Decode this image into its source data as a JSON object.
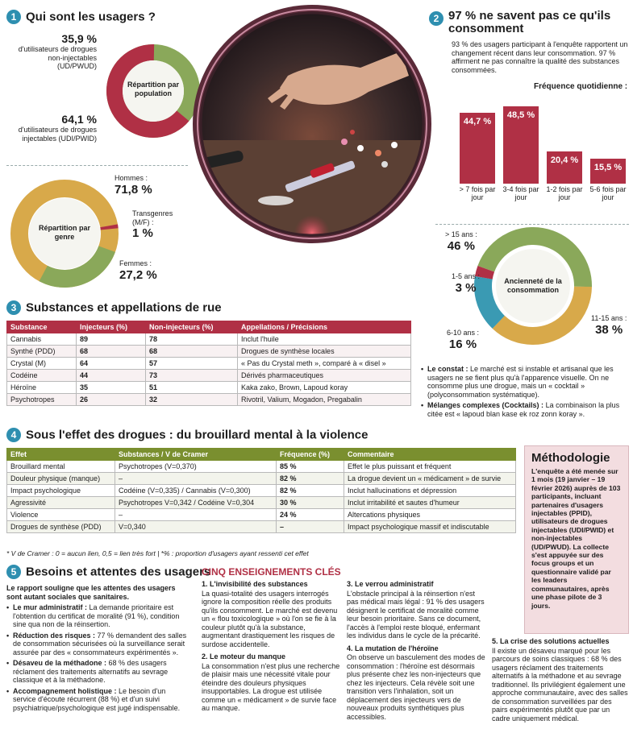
{
  "colors": {
    "red": "#b03045",
    "green": "#8aa85a",
    "olive": "#7a8f2f",
    "gold": "#d8a94a",
    "teal": "#3a9ab3",
    "blue": "#2e8fb0"
  },
  "s1": {
    "num": "1",
    "title": "Qui sont les usagers ?",
    "pop_label": "Répartition par population",
    "pwud_pct": "35,9 %",
    "pwud_text": "d'utilisateurs de drogues non-injectables (UD/PWUD)",
    "pwid_pct": "64,1 %",
    "pwid_text": "d'utilisateurs de drogues injectables (UDI/PWID)",
    "genre_label": "Répartition par genre",
    "hommes_label": "Hommes :",
    "hommes_pct": "71,8 %",
    "trans_label": "Transgenres (M/F) :",
    "trans_pct": "1 %",
    "femmes_label": "Femmes :",
    "femmes_pct": "27,2 %"
  },
  "s2": {
    "num": "2",
    "title": "97 % ne savent pas ce qu'ils consomment",
    "intro": "93 % des usagers participant à l'enquête rapportent un changement récent dans leur consommation. 97 % affirment ne pas connaître la qualité des substances consommées.",
    "freq_title": "Fréquence quotidienne :",
    "anc_label": "Ancienneté de la consommation",
    "anc": [
      {
        "label": "> 15 ans :",
        "pct": "46 %",
        "value": 46
      },
      {
        "label": "11-15 ans :",
        "pct": "38 %",
        "value": 38
      },
      {
        "label": "6-10 ans :",
        "pct": "16 %",
        "value": 16
      },
      {
        "label": "1-5 ans :",
        "pct": "3 %",
        "value": 3
      }
    ],
    "constat_bold": "Le constat :",
    "constat_text": " Le marché est si instable et artisanal que les usagers ne se fient plus qu'à l'apparence visuelle. On ne consomme plus une drogue, mais un « cocktail » (polyconsommation systématique).",
    "melange_bold": "Mélanges complexes (Cocktails) :",
    "melange_text": " La combinaison la plus citée est « lapoud blan kase ek roz zonn koray »."
  },
  "chart_data": {
    "type": "bar",
    "title": "Fréquence quotidienne :",
    "categories": [
      "> 7 fois par jour",
      "3-4 fois par jour",
      "1-2 fois par jour",
      "5-6 fois par jour"
    ],
    "values": [
      44.7,
      48.5,
      20.4,
      15.5
    ],
    "labels": [
      "44,7 %",
      "48,5 %",
      "20,4 %",
      "15,5 %"
    ],
    "ylim": [
      0,
      48.5
    ]
  },
  "s3": {
    "num": "3",
    "title": "Substances et appellations de rue",
    "headers": [
      "Substance",
      "Injecteurs (%)",
      "Non-injecteurs (%)",
      "Appellations / Précisions"
    ],
    "rows": [
      [
        "Cannabis",
        "89",
        "78",
        "Inclut l'huile"
      ],
      [
        "Synthé (PDD)",
        "68",
        "68",
        "Drogues de synthèse locales"
      ],
      [
        "Crystal (M)",
        "64",
        "57",
        "« Pas du Crystal meth », comparé à « disel »"
      ],
      [
        "Codéine",
        "44",
        "73",
        "Dérivés pharmaceutiques"
      ],
      [
        "Héroïne",
        "35",
        "51",
        "Kaka zako, Brown, Lapoud koray"
      ],
      [
        "Psychotropes",
        "26",
        "32",
        "Rivotril, Valium, Mogadon, Pregabalin"
      ]
    ]
  },
  "s4": {
    "num": "4",
    "title": "Sous l'effet des drogues : du brouillard mental à la violence",
    "headers": [
      "Effet",
      "Substances / V de Cramer",
      "Fréquence (%)",
      "Commentaire"
    ],
    "rows": [
      [
        "Brouillard mental",
        "Psychotropes (V=0,370)",
        "85 %",
        "Effet le plus puissant et fréquent"
      ],
      [
        "Douleur physique (manque)",
        "–",
        "82 %",
        "La drogue devient un « médicament » de survie"
      ],
      [
        "Impact psychologique",
        "Codéine (V=0,335) / Cannabis (V=0,300)",
        "82 %",
        "Inclut hallucinations et dépression"
      ],
      [
        "Agressivité",
        "Psychotropes V=0,342 / Codéine V=0,304",
        "30 %",
        "Inclut irritabilité et sautes d'humeur"
      ],
      [
        "Violence",
        "–",
        "24 %",
        "Altercations physiques"
      ],
      [
        "Drogues de synthèse (PDD)",
        "V=0,340",
        "–",
        "Impact psychologique massif et indiscutable"
      ]
    ],
    "note": "* V de Cramer : 0 = aucun lien, 0,5 = lien très fort | *% : proportion d'usagers ayant ressenti cet effet"
  },
  "method": {
    "title": "Méthodologie",
    "text": "L'enquête a été menée sur 1 mois (19 janvier – 19 février 2026) auprès de 103 participants, incluant partenaires d'usagers injectables (PPID), utilisateurs de drogues injectables (UDI/PWID) et non-injectables (UD/PWUD). La collecte s'est appuyée sur des focus groups et un questionnaire validé par les leaders communautaires, après une phase pilote de 3 jours."
  },
  "s5": {
    "num": "5",
    "title": "Besoins et attentes des usagers",
    "intro": "Le rapport souligne que les attentes des usagers sont autant sociales que sanitaires.",
    "items": [
      {
        "b": "Le mur administratif :",
        "t": " La demande prioritaire est l'obtention du certificat de moralité (91 %), condition sine qua non de la réinsertion."
      },
      {
        "b": "Réduction des risques :",
        "t": " 77 % demandent des salles de consommation sécurisées où la surveillance serait assurée par des « consommateurs expérimentés »."
      },
      {
        "b": "Désaveu de la méthadone :",
        "t": " 68 % des usagers réclament des traitements alternatifs au sevrage classique et à la méthadone."
      },
      {
        "b": "Accompagnement holistique :",
        "t": " Le besoin d'un service d'écoute récurrent (88 %) et d'un suivi psychiatrique/psychologique est jugé indispensable."
      }
    ]
  },
  "cinq": {
    "title": "CINQ ENSEIGNEMENTS CLÉS",
    "items": [
      {
        "h": "1. L'invisibilité des substances",
        "t": "La quasi-totalité des usagers interrogés ignore la composition réelle des produits qu'ils consomment. Le marché est devenu un « flou toxicologique » où l'on se fie à la couleur plutôt qu'à la substance, augmentant drastiquement les risques de surdose accidentelle."
      },
      {
        "h": "2. Le moteur du manque",
        "t": "La consommation n'est plus une recherche de plaisir mais une nécessité vitale pour éteindre des douleurs physiques insupportables. La drogue est utilisée comme un « médicament » de survie face au manque."
      },
      {
        "h": "3. Le verrou administratif",
        "t": "L'obstacle principal à la réinsertion n'est pas médical mais légal : 91 % des usagers désignent le certificat de moralité comme leur besoin prioritaire. Sans ce document, l'accès à l'emploi reste bloqué, enfermant les individus dans le cycle de la précarité."
      },
      {
        "h": "4. La mutation de l'héroïne",
        "t": "On observe un basculement des modes de consommation : l'héroïne est désormais plus présente chez les non-injecteurs que chez les injecteurs. Cela révèle soit une transition vers l'inhalation, soit un déplacement des injecteurs vers de nouveaux produits synthétiques plus accessibles."
      },
      {
        "h": "5. La crise des solutions actuelles",
        "t": "Il existe un désaveu marqué pour les parcours de soins classiques : 68 % des usagers réclament des traitements alternatifs à la méthadone et au sevrage traditionnel. Ils privilégient également une approche communautaire, avec des salles de consommation surveillées par des pairs expérimentés plutôt que par un cadre uniquement médical."
      }
    ]
  }
}
